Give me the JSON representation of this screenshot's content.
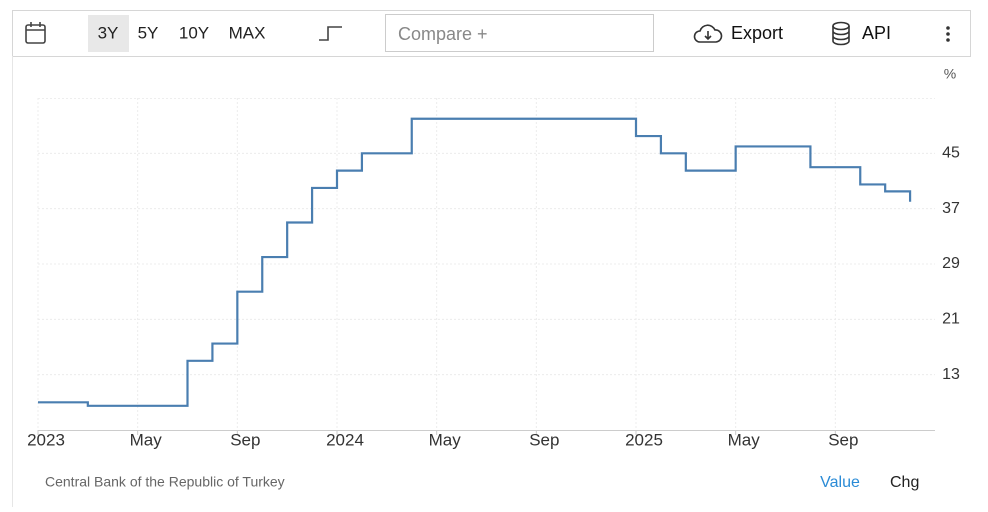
{
  "toolbar": {
    "ranges": [
      "3Y",
      "5Y",
      "10Y",
      "MAX"
    ],
    "compare": "Compare +",
    "export": "Export",
    "api": "API"
  },
  "chart_data": {
    "type": "line",
    "step": true,
    "unit": "%",
    "color": "#4a7eb0",
    "grid": true,
    "x": [
      "2023-01",
      "2023-03",
      "2023-07",
      "2023-08",
      "2023-09",
      "2023-10",
      "2023-11",
      "2023-12",
      "2024-01",
      "2024-02",
      "2024-04",
      "2025-01",
      "2025-02",
      "2025-03",
      "2025-05",
      "2025-08",
      "2025-10",
      "2025-11",
      "2025-12"
    ],
    "values": [
      9,
      8.5,
      15,
      17.5,
      25,
      30,
      35,
      40,
      42.5,
      45,
      50,
      47.5,
      45,
      42.5,
      46,
      43,
      40.5,
      39.5,
      38
    ],
    "xlim": [
      "2023-01",
      "2026-01"
    ],
    "xticks": [
      {
        "value": "2023-01",
        "label": "2023"
      },
      {
        "value": "2023-05",
        "label": "May"
      },
      {
        "value": "2023-09",
        "label": "Sep"
      },
      {
        "value": "2024-01",
        "label": "2024"
      },
      {
        "value": "2024-05",
        "label": "May"
      },
      {
        "value": "2024-09",
        "label": "Sep"
      },
      {
        "value": "2025-01",
        "label": "2025"
      },
      {
        "value": "2025-05",
        "label": "May"
      },
      {
        "value": "2025-09",
        "label": "Sep"
      }
    ],
    "ylim": [
      5,
      53
    ],
    "yticks": [
      13,
      21,
      29,
      37,
      45
    ]
  },
  "footer": {
    "source": "Central Bank of the Republic of Turkey",
    "tabs": [
      "Value",
      "Chg"
    ]
  }
}
